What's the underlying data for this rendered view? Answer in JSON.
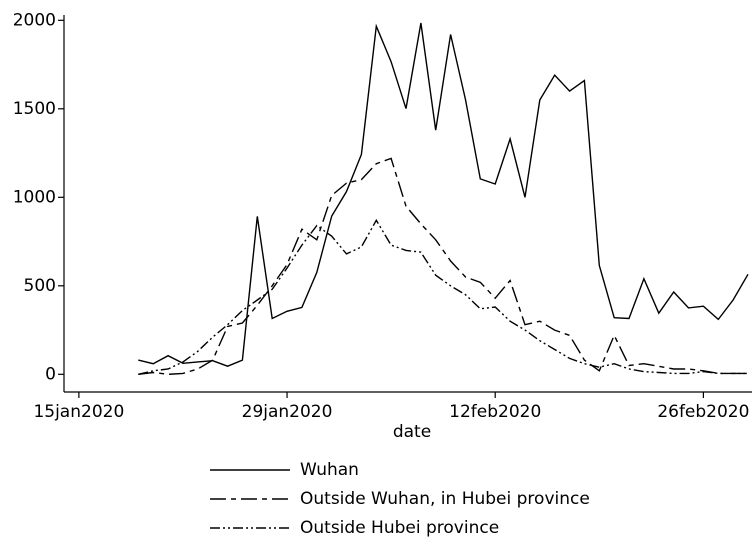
{
  "chart_data": {
    "type": "line",
    "x_label": "date",
    "x": [
      "2020-01-19",
      "2020-01-20",
      "2020-01-21",
      "2020-01-22",
      "2020-01-23",
      "2020-01-24",
      "2020-01-25",
      "2020-01-26",
      "2020-01-27",
      "2020-01-28",
      "2020-01-29",
      "2020-01-30",
      "2020-01-31",
      "2020-02-01",
      "2020-02-02",
      "2020-02-03",
      "2020-02-04",
      "2020-02-05",
      "2020-02-06",
      "2020-02-07",
      "2020-02-08",
      "2020-02-09",
      "2020-02-10",
      "2020-02-11",
      "2020-02-12",
      "2020-02-13",
      "2020-02-14",
      "2020-02-15",
      "2020-02-16",
      "2020-02-17",
      "2020-02-18",
      "2020-02-19",
      "2020-02-20",
      "2020-02-21",
      "2020-02-22",
      "2020-02-23",
      "2020-02-24",
      "2020-02-25",
      "2020-02-26",
      "2020-02-27",
      "2020-02-28",
      "2020-02-29"
    ],
    "series": [
      {
        "name": "Wuhan",
        "color": "#000000",
        "dash": "none",
        "values": [
          80,
          60,
          105,
          62,
          70,
          77,
          46,
          80,
          892,
          315,
          356,
          378,
          576,
          894,
          1033,
          1242,
          1967,
          1766,
          1501,
          1985,
          1379,
          1920,
          1552,
          1104,
          1075,
          1330,
          1000,
          1550,
          1690,
          1600,
          1660,
          615,
          320,
          315,
          540,
          345,
          465,
          375,
          385,
          310,
          420,
          565
        ]
      },
      {
        "name": "Outside Wuhan, in Hubei province",
        "color": "#000000",
        "dash": "16,5,5,5",
        "values": [
          0,
          10,
          0,
          5,
          30,
          80,
          270,
          290,
          390,
          500,
          620,
          820,
          760,
          1010,
          1080,
          1100,
          1190,
          1220,
          950,
          850,
          760,
          640,
          550,
          520,
          430,
          530,
          280,
          300,
          250,
          220,
          80,
          20,
          220,
          50,
          60,
          45,
          30,
          30,
          20,
          5,
          5,
          5
        ]
      },
      {
        "name": "Outside Hubei province",
        "color": "#000000",
        "dash": "10,3,2,3,2,3",
        "values": [
          0,
          20,
          30,
          70,
          130,
          210,
          280,
          360,
          420,
          480,
          600,
          730,
          840,
          780,
          680,
          720,
          870,
          730,
          700,
          690,
          560,
          500,
          450,
          370,
          380,
          300,
          250,
          190,
          140,
          90,
          60,
          40,
          60,
          30,
          15,
          10,
          5,
          5,
          15,
          5,
          5,
          5
        ]
      }
    ],
    "xlim": [
      "2020-01-14",
      "2020-02-29"
    ],
    "xticks": [
      {
        "value": "2020-01-15",
        "label": "15jan2020"
      },
      {
        "value": "2020-01-29",
        "label": "29jan2020"
      },
      {
        "value": "2020-02-12",
        "label": "12feb2020"
      },
      {
        "value": "2020-02-26",
        "label": "26feb2020"
      }
    ],
    "ylim": [
      -100,
      2030
    ],
    "yticks": [
      0,
      500,
      1000,
      1500,
      2000
    ]
  }
}
